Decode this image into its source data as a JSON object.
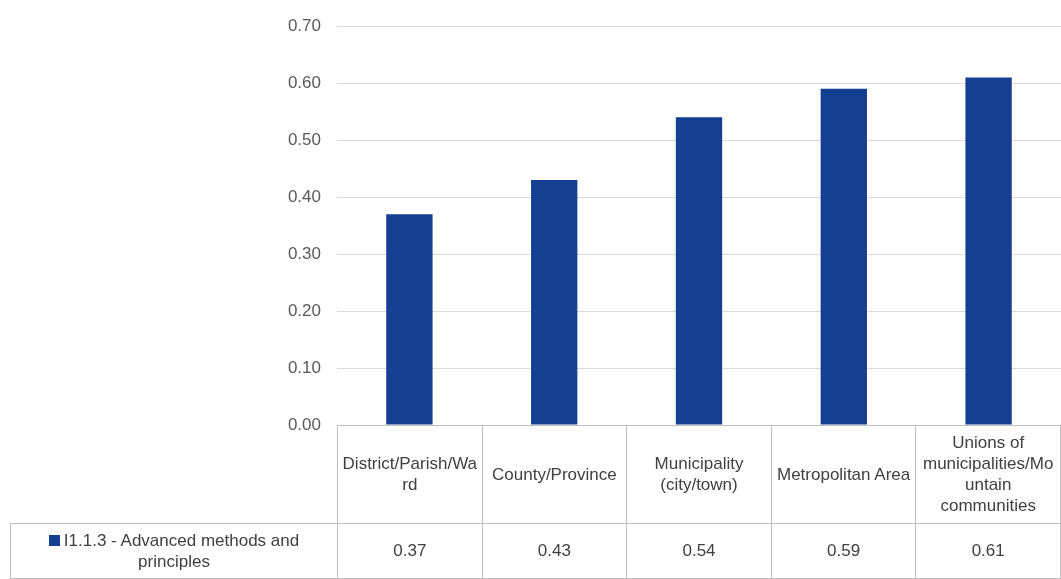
{
  "chart_data": {
    "type": "bar",
    "categories": [
      "District/Parish/Ward",
      "County/Province",
      "Municipality (city/town)",
      "Metropolitan Area",
      "Unions of municipalities/Mountain communities"
    ],
    "series": [
      {
        "name": "I1.1.3 - Advanced methods and principles",
        "color": "#153f91",
        "values": [
          0.37,
          0.43,
          0.54,
          0.59,
          0.61
        ]
      }
    ],
    "ylim": [
      0,
      0.7
    ],
    "yticks": [
      {
        "value": 0,
        "label": "0.00"
      },
      {
        "value": 0.1,
        "label": "0.10"
      },
      {
        "value": 0.2,
        "label": "0.20"
      },
      {
        "value": 0.3,
        "label": "0.30"
      },
      {
        "value": 0.4,
        "label": "0.40"
      },
      {
        "value": 0.5,
        "label": "0.50"
      },
      {
        "value": 0.6,
        "label": "0.60"
      },
      {
        "value": 0.7,
        "label": "0.70"
      }
    ],
    "grid": "y",
    "legend": "bottom left",
    "data_labels": true
  }
}
